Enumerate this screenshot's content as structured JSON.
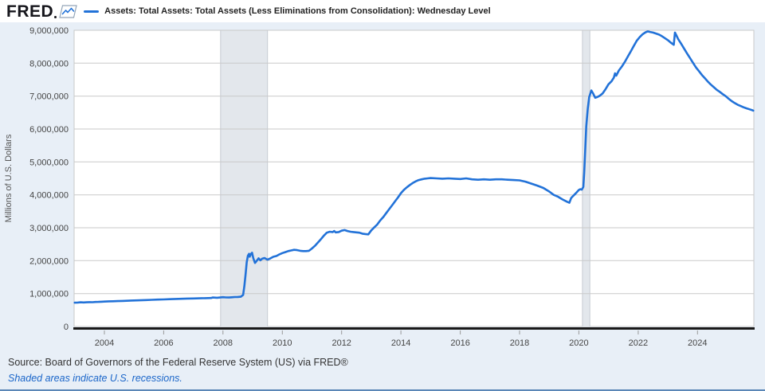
{
  "header": {
    "logo_text": "FRED",
    "series_label": "Assets: Total Assets: Total Assets (Less Eliminations from Consolidation): Wednesday Level"
  },
  "footer": {
    "source": "Source: Board of Governors of the Federal Reserve System (US) via FRED®",
    "note": "Shaded areas indicate U.S. recessions."
  },
  "colors": {
    "line": "#2272d8",
    "page_bg": "#e8eff7",
    "header_bg": "#ffffff",
    "plot_bg": "#ffffff",
    "gridline": "#c9c9c9",
    "recession_band": "#e3e7ec",
    "recession_band_edge": "#c7ccd3",
    "axis_line": "#191919",
    "tick_mark": "#999999",
    "tick_label": "#444444",
    "link": "#1b66c9",
    "bottom_border": "#5b87b7"
  },
  "chart_data": {
    "type": "line",
    "title": "Assets: Total Assets: Total Assets (Less Eliminations from Consolidation): Wednesday Level",
    "xlabel": "",
    "ylabel": "Millions of U.S. Dollars",
    "x_range": [
      2002.98,
      2025.9
    ],
    "ylim": [
      0,
      9000000
    ],
    "y_ticks": [
      0,
      1000000,
      2000000,
      3000000,
      4000000,
      5000000,
      6000000,
      7000000,
      8000000,
      9000000
    ],
    "x_ticks": [
      2004,
      2006,
      2008,
      2010,
      2012,
      2014,
      2016,
      2018,
      2020,
      2022,
      2024
    ],
    "grid": "horizontal-only",
    "legend_position": "top-left",
    "recessions": [
      {
        "start": 2007.92,
        "end": 2009.5
      },
      {
        "start": 2020.12,
        "end": 2020.37
      }
    ],
    "series": [
      {
        "name": "Assets: Total Assets: Total Assets (Less Eliminations from Consolidation): Wednesday Level",
        "units": "Millions of U.S. Dollars",
        "points": [
          [
            2003.0,
            724000
          ],
          [
            2003.1,
            728000
          ],
          [
            2003.2,
            735000
          ],
          [
            2003.3,
            731000
          ],
          [
            2003.4,
            736000
          ],
          [
            2003.5,
            741000
          ],
          [
            2003.6,
            738000
          ],
          [
            2003.7,
            744000
          ],
          [
            2003.8,
            748000
          ],
          [
            2003.9,
            752000
          ],
          [
            2004.0,
            758000
          ],
          [
            2004.15,
            764000
          ],
          [
            2004.3,
            768000
          ],
          [
            2004.45,
            772000
          ],
          [
            2004.6,
            776000
          ],
          [
            2004.75,
            781000
          ],
          [
            2004.9,
            788000
          ],
          [
            2005.0,
            792000
          ],
          [
            2005.2,
            797000
          ],
          [
            2005.4,
            803000
          ],
          [
            2005.6,
            810000
          ],
          [
            2005.8,
            817000
          ],
          [
            2006.0,
            823000
          ],
          [
            2006.2,
            830000
          ],
          [
            2006.4,
            836000
          ],
          [
            2006.6,
            842000
          ],
          [
            2006.8,
            848000
          ],
          [
            2007.0,
            852000
          ],
          [
            2007.2,
            857000
          ],
          [
            2007.4,
            862000
          ],
          [
            2007.6,
            866000
          ],
          [
            2007.65,
            880000
          ],
          [
            2007.8,
            873000
          ],
          [
            2008.0,
            890000
          ],
          [
            2008.1,
            884000
          ],
          [
            2008.2,
            880000
          ],
          [
            2008.3,
            888000
          ],
          [
            2008.4,
            894000
          ],
          [
            2008.5,
            898000
          ],
          [
            2008.6,
            905000
          ],
          [
            2008.68,
            960000
          ],
          [
            2008.72,
            1220000
          ],
          [
            2008.76,
            1560000
          ],
          [
            2008.8,
            1950000
          ],
          [
            2008.84,
            2150000
          ],
          [
            2008.88,
            2210000
          ],
          [
            2008.9,
            2120000
          ],
          [
            2008.94,
            2200000
          ],
          [
            2008.98,
            2240000
          ],
          [
            2009.02,
            2080000
          ],
          [
            2009.08,
            1930000
          ],
          [
            2009.14,
            2000000
          ],
          [
            2009.2,
            2070000
          ],
          [
            2009.26,
            2010000
          ],
          [
            2009.32,
            2060000
          ],
          [
            2009.4,
            2080000
          ],
          [
            2009.5,
            2030000
          ],
          [
            2009.6,
            2070000
          ],
          [
            2009.7,
            2120000
          ],
          [
            2009.8,
            2140000
          ],
          [
            2009.9,
            2190000
          ],
          [
            2010.0,
            2230000
          ],
          [
            2010.1,
            2260000
          ],
          [
            2010.2,
            2290000
          ],
          [
            2010.3,
            2310000
          ],
          [
            2010.4,
            2330000
          ],
          [
            2010.5,
            2320000
          ],
          [
            2010.6,
            2300000
          ],
          [
            2010.7,
            2290000
          ],
          [
            2010.8,
            2290000
          ],
          [
            2010.9,
            2300000
          ],
          [
            2011.0,
            2370000
          ],
          [
            2011.1,
            2450000
          ],
          [
            2011.2,
            2550000
          ],
          [
            2011.3,
            2650000
          ],
          [
            2011.4,
            2760000
          ],
          [
            2011.5,
            2850000
          ],
          [
            2011.6,
            2880000
          ],
          [
            2011.7,
            2870000
          ],
          [
            2011.75,
            2900000
          ],
          [
            2011.8,
            2860000
          ],
          [
            2011.9,
            2870000
          ],
          [
            2012.0,
            2910000
          ],
          [
            2012.1,
            2930000
          ],
          [
            2012.2,
            2900000
          ],
          [
            2012.3,
            2880000
          ],
          [
            2012.4,
            2870000
          ],
          [
            2012.5,
            2860000
          ],
          [
            2012.6,
            2850000
          ],
          [
            2012.7,
            2820000
          ],
          [
            2012.8,
            2810000
          ],
          [
            2012.9,
            2800000
          ],
          [
            2013.0,
            2920000
          ],
          [
            2013.1,
            3010000
          ],
          [
            2013.2,
            3100000
          ],
          [
            2013.3,
            3220000
          ],
          [
            2013.4,
            3320000
          ],
          [
            2013.5,
            3440000
          ],
          [
            2013.6,
            3560000
          ],
          [
            2013.7,
            3680000
          ],
          [
            2013.8,
            3800000
          ],
          [
            2013.9,
            3920000
          ],
          [
            2014.0,
            4050000
          ],
          [
            2014.1,
            4150000
          ],
          [
            2014.2,
            4230000
          ],
          [
            2014.3,
            4300000
          ],
          [
            2014.4,
            4360000
          ],
          [
            2014.5,
            4410000
          ],
          [
            2014.6,
            4450000
          ],
          [
            2014.7,
            4470000
          ],
          [
            2014.8,
            4490000
          ],
          [
            2014.9,
            4500000
          ],
          [
            2015.0,
            4510000
          ],
          [
            2015.2,
            4500000
          ],
          [
            2015.4,
            4490000
          ],
          [
            2015.6,
            4500000
          ],
          [
            2015.8,
            4490000
          ],
          [
            2016.0,
            4480000
          ],
          [
            2016.2,
            4500000
          ],
          [
            2016.4,
            4470000
          ],
          [
            2016.6,
            4460000
          ],
          [
            2016.8,
            4470000
          ],
          [
            2017.0,
            4460000
          ],
          [
            2017.2,
            4470000
          ],
          [
            2017.4,
            4470000
          ],
          [
            2017.6,
            4460000
          ],
          [
            2017.8,
            4450000
          ],
          [
            2018.0,
            4440000
          ],
          [
            2018.2,
            4400000
          ],
          [
            2018.4,
            4340000
          ],
          [
            2018.6,
            4280000
          ],
          [
            2018.8,
            4210000
          ],
          [
            2019.0,
            4100000
          ],
          [
            2019.15,
            4000000
          ],
          [
            2019.3,
            3940000
          ],
          [
            2019.45,
            3860000
          ],
          [
            2019.6,
            3790000
          ],
          [
            2019.68,
            3760000
          ],
          [
            2019.74,
            3900000
          ],
          [
            2019.8,
            3960000
          ],
          [
            2019.9,
            4050000
          ],
          [
            2020.0,
            4150000
          ],
          [
            2020.05,
            4170000
          ],
          [
            2020.1,
            4160000
          ],
          [
            2020.15,
            4240000
          ],
          [
            2020.18,
            4670000
          ],
          [
            2020.21,
            5250000
          ],
          [
            2020.25,
            6080000
          ],
          [
            2020.3,
            6620000
          ],
          [
            2020.35,
            6970000
          ],
          [
            2020.42,
            7170000
          ],
          [
            2020.48,
            7080000
          ],
          [
            2020.55,
            6950000
          ],
          [
            2020.62,
            6970000
          ],
          [
            2020.7,
            7010000
          ],
          [
            2020.8,
            7080000
          ],
          [
            2020.9,
            7210000
          ],
          [
            2021.0,
            7360000
          ],
          [
            2021.1,
            7450000
          ],
          [
            2021.18,
            7560000
          ],
          [
            2021.22,
            7690000
          ],
          [
            2021.26,
            7620000
          ],
          [
            2021.35,
            7780000
          ],
          [
            2021.45,
            7900000
          ],
          [
            2021.55,
            8040000
          ],
          [
            2021.65,
            8200000
          ],
          [
            2021.75,
            8360000
          ],
          [
            2021.85,
            8520000
          ],
          [
            2021.95,
            8680000
          ],
          [
            2022.05,
            8790000
          ],
          [
            2022.15,
            8880000
          ],
          [
            2022.25,
            8940000
          ],
          [
            2022.32,
            8965000
          ],
          [
            2022.4,
            8950000
          ],
          [
            2022.5,
            8930000
          ],
          [
            2022.6,
            8900000
          ],
          [
            2022.7,
            8870000
          ],
          [
            2022.8,
            8820000
          ],
          [
            2022.9,
            8760000
          ],
          [
            2023.0,
            8700000
          ],
          [
            2023.08,
            8640000
          ],
          [
            2023.15,
            8590000
          ],
          [
            2023.2,
            8560000
          ],
          [
            2023.24,
            8930000
          ],
          [
            2023.28,
            8860000
          ],
          [
            2023.35,
            8730000
          ],
          [
            2023.45,
            8590000
          ],
          [
            2023.55,
            8440000
          ],
          [
            2023.65,
            8290000
          ],
          [
            2023.75,
            8150000
          ],
          [
            2023.85,
            8010000
          ],
          [
            2023.95,
            7870000
          ],
          [
            2024.05,
            7760000
          ],
          [
            2024.15,
            7640000
          ],
          [
            2024.25,
            7540000
          ],
          [
            2024.35,
            7440000
          ],
          [
            2024.45,
            7350000
          ],
          [
            2024.55,
            7270000
          ],
          [
            2024.65,
            7190000
          ],
          [
            2024.75,
            7130000
          ],
          [
            2024.85,
            7060000
          ],
          [
            2024.95,
            7000000
          ],
          [
            2025.05,
            6920000
          ],
          [
            2025.15,
            6850000
          ],
          [
            2025.25,
            6790000
          ],
          [
            2025.35,
            6740000
          ],
          [
            2025.45,
            6700000
          ],
          [
            2025.55,
            6660000
          ],
          [
            2025.65,
            6630000
          ],
          [
            2025.75,
            6600000
          ],
          [
            2025.85,
            6570000
          ],
          [
            2025.88,
            6560000
          ]
        ]
      }
    ]
  }
}
